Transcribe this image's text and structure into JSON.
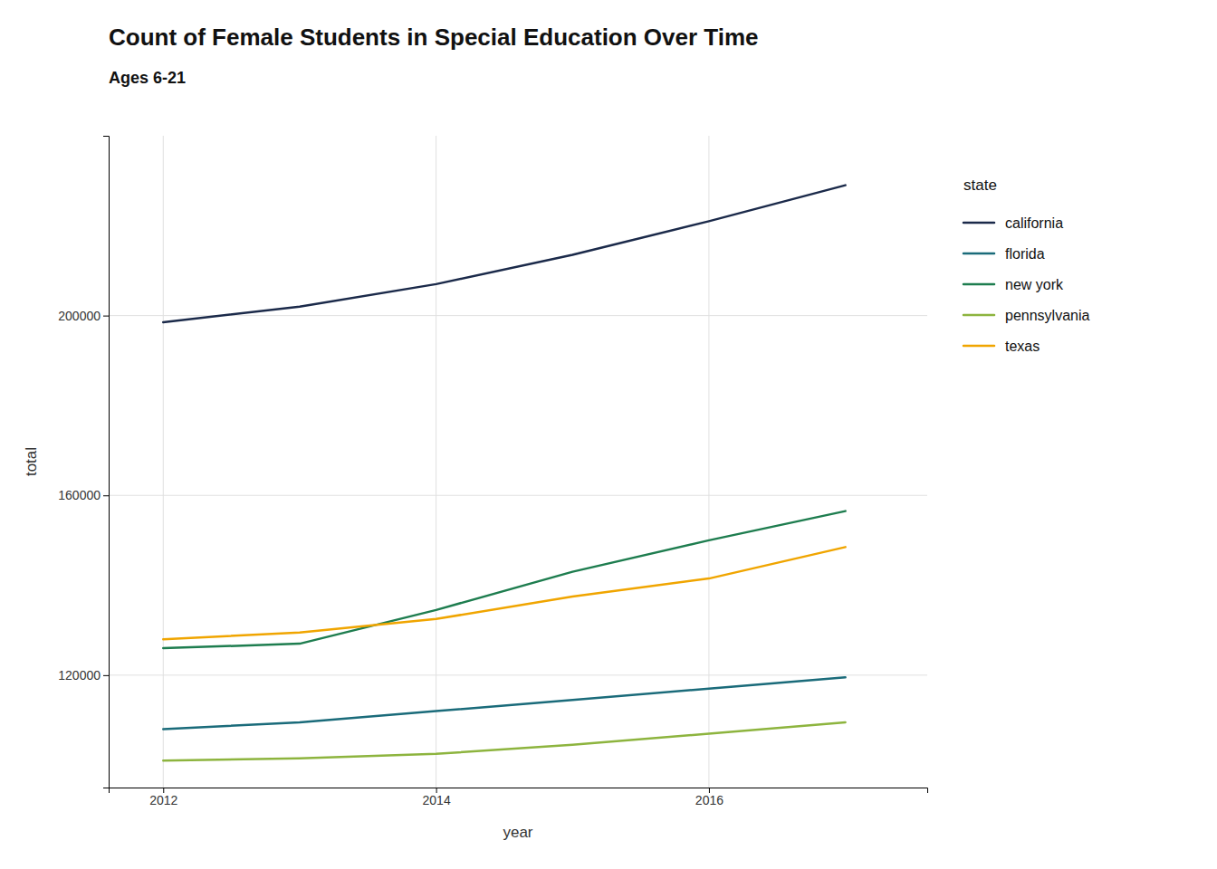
{
  "chart_data": {
    "type": "line",
    "title": "Count of Female Students in Special Education Over Time",
    "subtitle": "Ages 6-21",
    "xlabel": "year",
    "ylabel": "total",
    "x": [
      2012,
      2013,
      2014,
      2015,
      2016,
      2017
    ],
    "series": [
      {
        "name": "california",
        "color": "#1b2a4a",
        "values": [
          198500,
          202000,
          207000,
          213500,
          221000,
          229000
        ]
      },
      {
        "name": "florida",
        "color": "#1a6b7a",
        "values": [
          108000,
          109500,
          112000,
          114500,
          117000,
          119500
        ]
      },
      {
        "name": "new york",
        "color": "#1e7d4f",
        "values": [
          126000,
          127000,
          134500,
          143000,
          150000,
          156500
        ]
      },
      {
        "name": "pennsylvania",
        "color": "#8db43e",
        "values": [
          101000,
          101500,
          102500,
          104500,
          107000,
          109500
        ]
      },
      {
        "name": "texas",
        "color": "#f0a500",
        "values": [
          128000,
          129500,
          132500,
          137500,
          141500,
          148500
        ]
      }
    ],
    "xlim": [
      2011.6,
      2017.6
    ],
    "xticks": [
      2012,
      2014,
      2016
    ],
    "ylim": [
      95000,
      240000
    ],
    "yticks": [
      120000,
      160000,
      200000
    ],
    "grid": true,
    "legend": "right",
    "legend_title": "state"
  }
}
